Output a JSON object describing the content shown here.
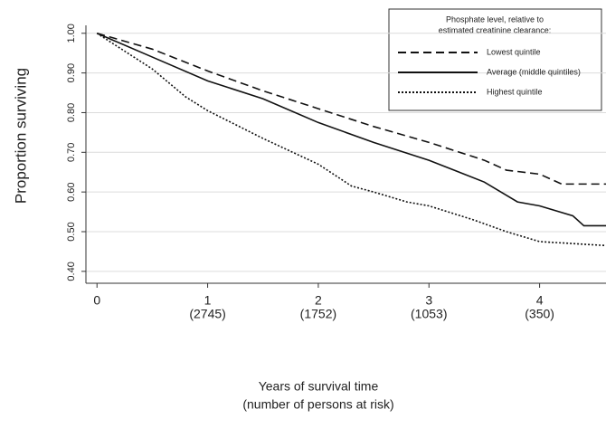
{
  "chart_data": {
    "type": "line",
    "y_label": "Proportion surviving",
    "x_label": [
      "Years of survival time",
      "(number of persons at risk)"
    ],
    "legend_title": [
      "Phosphate level, relative to",
      "estimated creatinine clearance:"
    ],
    "legend_position": "upper right",
    "grid": true,
    "xlim": [
      -0.1,
      4.6
    ],
    "xticks": [
      0,
      1,
      2,
      3,
      4
    ],
    "ylim": [
      0.37,
      1.02
    ],
    "yticks": [
      {
        "value": 0.4,
        "label": "0.40"
      },
      {
        "value": 0.5,
        "label": "0.50"
      },
      {
        "value": 0.6,
        "label": "0.60"
      },
      {
        "value": 0.7,
        "label": "0.70"
      },
      {
        "value": 0.8,
        "label": "0.80"
      },
      {
        "value": 0.9,
        "label": "0.90"
      },
      {
        "value": 1.0,
        "label": "1.00"
      }
    ],
    "at_risk": [
      {
        "x": 1,
        "label": "(2745)"
      },
      {
        "x": 2,
        "label": "(1752)"
      },
      {
        "x": 3,
        "label": "(1053)"
      },
      {
        "x": 4,
        "label": "(350)"
      }
    ],
    "series": [
      {
        "name": "Lowest quintile",
        "color": "#111111",
        "style": "dashed",
        "x": [
          0,
          0.5,
          1,
          1.5,
          2,
          2.5,
          3,
          3.5,
          3.7,
          4,
          4.2,
          4.6
        ],
        "y": [
          1.0,
          0.96,
          0.905,
          0.855,
          0.81,
          0.765,
          0.725,
          0.68,
          0.655,
          0.645,
          0.62,
          0.62
        ]
      },
      {
        "name": "Average (middle quintiles)",
        "color": "#111111",
        "style": "solid",
        "x": [
          0,
          0.5,
          1,
          1.5,
          2,
          2.5,
          3,
          3.5,
          3.8,
          4,
          4.3,
          4.4,
          4.6
        ],
        "y": [
          1.0,
          0.94,
          0.88,
          0.835,
          0.775,
          0.725,
          0.68,
          0.625,
          0.575,
          0.565,
          0.54,
          0.515,
          0.515
        ]
      },
      {
        "name": "Highest quintile",
        "color": "#111111",
        "style": "dotted",
        "x": [
          0,
          0.5,
          0.8,
          1,
          1.5,
          2,
          2.3,
          2.5,
          2.8,
          3,
          3.4,
          3.7,
          4,
          4.6
        ],
        "y": [
          1.0,
          0.91,
          0.84,
          0.805,
          0.735,
          0.67,
          0.615,
          0.6,
          0.575,
          0.565,
          0.53,
          0.5,
          0.475,
          0.465
        ]
      }
    ]
  }
}
